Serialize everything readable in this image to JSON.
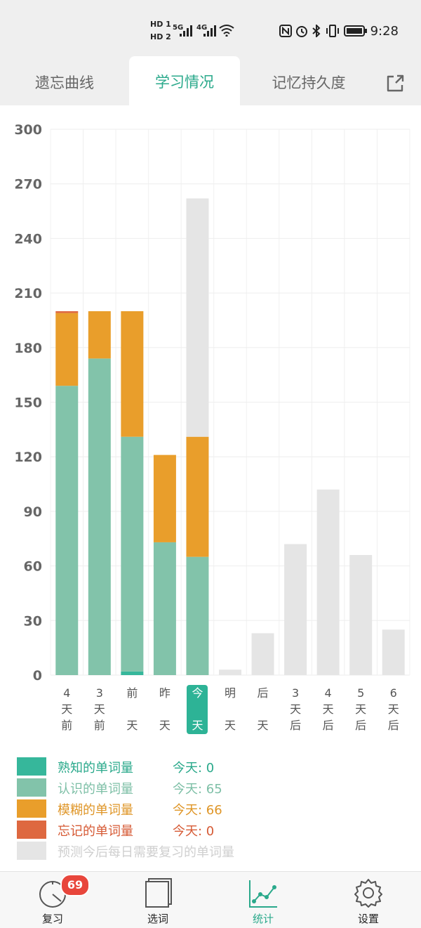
{
  "status_bar": {
    "time": "9:28",
    "sim_labels": [
      "HD 1",
      "HD 2"
    ],
    "signal_labels": [
      "5G",
      "4G"
    ],
    "icons": [
      "nfc-icon",
      "alarm-icon",
      "bluetooth-icon",
      "vibrate-icon",
      "battery-icon",
      "wifi-icon"
    ]
  },
  "tabs": [
    {
      "label": "遗忘曲线",
      "active": false
    },
    {
      "label": "学习情况",
      "active": true
    },
    {
      "label": "记忆持久度",
      "active": false
    }
  ],
  "share_icon": "share-icon",
  "colors": {
    "known": "#36b79b",
    "recognized": "#82c3aa",
    "fuzzy": "#e99e2b",
    "forgotten": "#de6840",
    "forecast": "#e5e5e5",
    "accent": "#2aa98b"
  },
  "chart_data": {
    "type": "bar",
    "stacked": true,
    "categories": [
      "4天前",
      "3天前",
      "前天",
      "昨天",
      "今天",
      "明天",
      "后天",
      "3天后",
      "4天后",
      "5天后",
      "6天后"
    ],
    "category_lines": [
      [
        "4",
        "天",
        "前"
      ],
      [
        "3",
        "天",
        "前"
      ],
      [
        "前",
        "",
        "天"
      ],
      [
        "昨",
        "",
        "天"
      ],
      [
        "今",
        "",
        "天"
      ],
      [
        "明",
        "",
        "天"
      ],
      [
        "后",
        "",
        "天"
      ],
      [
        "3",
        "天",
        "后"
      ],
      [
        "4",
        "天",
        "后"
      ],
      [
        "5",
        "天",
        "后"
      ],
      [
        "6",
        "天",
        "后"
      ]
    ],
    "highlight_category": "今天",
    "series": [
      {
        "name": "熟知的单词量",
        "color": "#36b79b",
        "values": [
          0,
          0,
          2,
          0,
          0,
          0,
          0,
          0,
          0,
          0,
          0
        ]
      },
      {
        "name": "认识的单词量",
        "color": "#82c3aa",
        "values": [
          159,
          174,
          129,
          73,
          65,
          0,
          0,
          0,
          0,
          0,
          0
        ]
      },
      {
        "name": "模糊的单词量",
        "color": "#e99e2b",
        "values": [
          40,
          26,
          69,
          48,
          66,
          0,
          0,
          0,
          0,
          0,
          0
        ]
      },
      {
        "name": "忘记的单词量",
        "color": "#de6840",
        "values": [
          1,
          0,
          0,
          0,
          0,
          0,
          0,
          0,
          0,
          0,
          0
        ]
      },
      {
        "name": "预测今后每日需要复习的单词量",
        "color": "#e5e5e5",
        "values": [
          0,
          0,
          0,
          0,
          131,
          3,
          23,
          72,
          102,
          66,
          25
        ]
      }
    ],
    "ylim": [
      0,
      300
    ],
    "yticks": [
      0,
      30,
      60,
      90,
      120,
      150,
      180,
      210,
      240,
      270,
      300
    ],
    "grid": true
  },
  "legend": [
    {
      "label": "熟知的单词量",
      "today": "今天: 0",
      "color": "#36b79b",
      "text_color": "#2aa98b"
    },
    {
      "label": "认识的单词量",
      "today": "今天: 65",
      "color": "#82c3aa",
      "text_color": "#7dbfa6"
    },
    {
      "label": "模糊的单词量",
      "today": "今天: 66",
      "color": "#e99e2b",
      "text_color": "#df9526"
    },
    {
      "label": "忘记的单词量",
      "today": "今天: 0",
      "color": "#de6840",
      "text_color": "#d65a35"
    },
    {
      "label": "预测今后每日需要复习的单词量",
      "today": "",
      "color": "#e5e5e5",
      "text_color": "#cfcfcf"
    }
  ],
  "nav": [
    {
      "label": "复习",
      "icon": "review-dial-icon",
      "active": false,
      "badge": "69"
    },
    {
      "label": "选词",
      "icon": "word-book-icon",
      "active": false
    },
    {
      "label": "统计",
      "icon": "stats-chart-icon",
      "active": true
    },
    {
      "label": "设置",
      "icon": "gear-icon",
      "active": false
    }
  ]
}
